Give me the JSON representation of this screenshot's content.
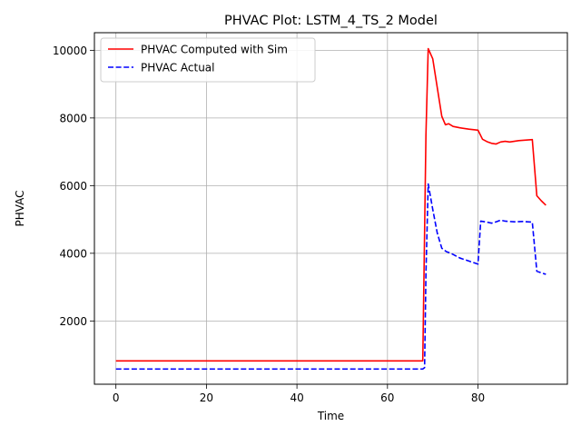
{
  "chart_data": {
    "type": "line",
    "title": "PHVAC Plot: LSTM_4_TS_2 Model",
    "xlabel": "Time",
    "ylabel": "PHVAC",
    "xlim": [
      -4.75,
      99.75
    ],
    "ylim": [
      130,
      10520
    ],
    "xticks": [
      0,
      20,
      40,
      60,
      80
    ],
    "yticks": [
      2000,
      4000,
      6000,
      8000,
      10000
    ],
    "grid": true,
    "legend_position": "upper-left",
    "series": [
      {
        "name": "PHVAC Computed with Sim",
        "color": "#ff0000",
        "dash": "solid",
        "points": [
          [
            0,
            820
          ],
          [
            67.8,
            820
          ],
          [
            68.5,
            7500
          ],
          [
            69,
            10050
          ],
          [
            70,
            9750
          ],
          [
            71,
            8900
          ],
          [
            72,
            8050
          ],
          [
            72.8,
            7800
          ],
          [
            73.5,
            7830
          ],
          [
            74.5,
            7750
          ],
          [
            76,
            7710
          ],
          [
            78,
            7670
          ],
          [
            80,
            7640
          ],
          [
            81,
            7370
          ],
          [
            82,
            7300
          ],
          [
            83,
            7250
          ],
          [
            84,
            7230
          ],
          [
            85,
            7290
          ],
          [
            86,
            7310
          ],
          [
            87,
            7290
          ],
          [
            88,
            7310
          ],
          [
            89,
            7330
          ],
          [
            90,
            7340
          ],
          [
            92,
            7360
          ],
          [
            93,
            5700
          ],
          [
            94,
            5550
          ],
          [
            95,
            5420
          ]
        ]
      },
      {
        "name": "PHVAC Actual",
        "color": "#0000ff",
        "dash": "dashed",
        "points": [
          [
            0,
            580
          ],
          [
            67.8,
            580
          ],
          [
            68.2,
            620
          ],
          [
            68.5,
            3400
          ],
          [
            69,
            6050
          ],
          [
            70,
            5300
          ],
          [
            71,
            4600
          ],
          [
            72,
            4150
          ],
          [
            73,
            4050
          ],
          [
            74,
            4000
          ],
          [
            75,
            3930
          ],
          [
            76,
            3860
          ],
          [
            78,
            3770
          ],
          [
            80,
            3680
          ],
          [
            80.6,
            4950
          ],
          [
            82,
            4920
          ],
          [
            83,
            4890
          ],
          [
            84,
            4930
          ],
          [
            85,
            4980
          ],
          [
            86,
            4950
          ],
          [
            88,
            4930
          ],
          [
            90,
            4940
          ],
          [
            92,
            4920
          ],
          [
            93,
            3470
          ],
          [
            94,
            3420
          ],
          [
            95,
            3380
          ]
        ]
      }
    ]
  }
}
